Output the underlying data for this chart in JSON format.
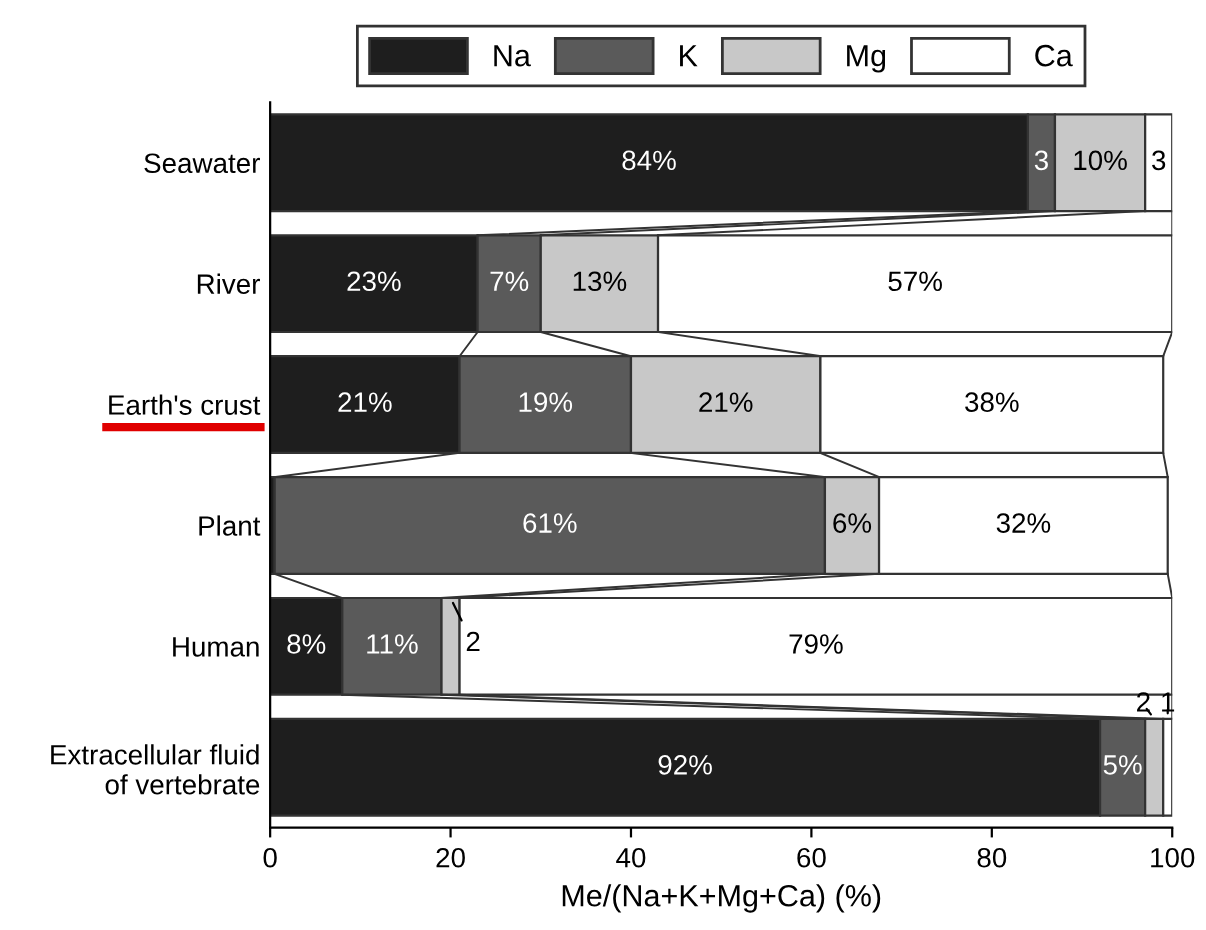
{
  "chart_data": {
    "type": "bar",
    "orientation": "horizontal",
    "stacked": true,
    "xlabel": "Me/(Na+K+Mg+Ca) (%)",
    "categories": [
      "Seawater",
      "River",
      "Earth's crust",
      "Plant",
      "Human",
      "Extracellular fluid\nof vertebrate"
    ],
    "series": [
      {
        "name": "Na",
        "color": "#1e1e1e",
        "values": [
          84,
          23,
          21,
          0.5,
          8,
          92
        ],
        "value_labels": [
          "84%",
          "23%",
          "21%",
          null,
          "8%",
          "92%"
        ]
      },
      {
        "name": "K",
        "color": "#5a5a5a",
        "values": [
          3,
          7,
          19,
          61,
          11,
          5
        ],
        "value_labels": [
          "3",
          "7%",
          "19%",
          "61%",
          "11%",
          "5%"
        ]
      },
      {
        "name": "Mg",
        "color": "#c8c8c8",
        "values": [
          10,
          13,
          21,
          6,
          2,
          2
        ],
        "value_labels": [
          "10%",
          "13%",
          "21%",
          "6%",
          "2",
          "2"
        ]
      },
      {
        "name": "Ca",
        "color": "#ffffff",
        "values": [
          3,
          57,
          38,
          32,
          79,
          1
        ],
        "value_labels": [
          "3",
          "57%",
          "38%",
          "32%",
          "79%",
          "1"
        ]
      }
    ],
    "xlim": [
      0,
      100
    ],
    "xticks": [
      0,
      20,
      40,
      60,
      80,
      100
    ],
    "legend": "top",
    "grid": false
  }
}
